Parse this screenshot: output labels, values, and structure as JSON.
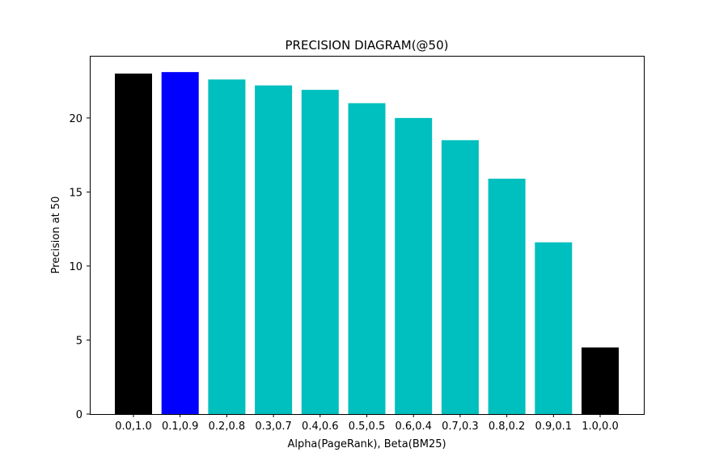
{
  "chart_data": {
    "type": "bar",
    "title": "PRECISION DIAGRAM(@50)",
    "xlabel": "Alpha(PageRank), Beta(BM25)",
    "ylabel": "Precision at 50",
    "categories": [
      "0.0,1.0",
      "0.1,0.9",
      "0.2,0.8",
      "0.3,0.7",
      "0.4,0.6",
      "0.5,0.5",
      "0.6,0.4",
      "0.7,0.3",
      "0.8,0.2",
      "0.9,0.1",
      "1.0,0.0"
    ],
    "values": [
      23.0,
      23.1,
      22.6,
      22.2,
      21.9,
      21.0,
      20.0,
      18.5,
      15.9,
      11.6,
      4.5
    ],
    "bar_colors": [
      "#000000",
      "#0000ff",
      "#00bfbf",
      "#00bfbf",
      "#00bfbf",
      "#00bfbf",
      "#00bfbf",
      "#00bfbf",
      "#00bfbf",
      "#00bfbf",
      "#000000"
    ],
    "ylim": [
      0,
      24.2
    ],
    "yticks": [
      0,
      5,
      10,
      15,
      20
    ],
    "grid": false,
    "legend": "none"
  }
}
